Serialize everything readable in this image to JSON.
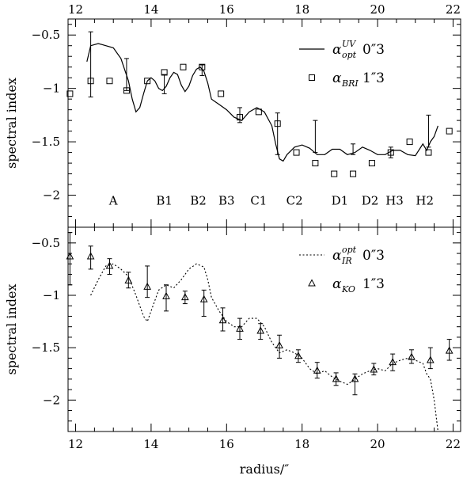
{
  "chart_data": [
    {
      "type": "line",
      "panel": "top",
      "ylabel": "spectral index",
      "xlabel": "",
      "xlim": [
        11.8,
        22.2
      ],
      "ylim": [
        -2.3,
        -0.35
      ],
      "xticks": [
        "12",
        "14",
        "16",
        "18",
        "20",
        "22"
      ],
      "yticks": [
        "−0.5",
        "−1",
        "−1.5",
        "−2"
      ],
      "ytick_values": [
        -0.5,
        -1,
        -1.5,
        -2
      ],
      "legend": [
        {
          "symbol": "line",
          "greek": "α",
          "sup": "UV",
          "sub": "opt",
          "size": "0″3"
        },
        {
          "symbol": "square",
          "greek": "α",
          "sup": "",
          "sub": "BRI",
          "size": "1″3"
        }
      ],
      "region_labels": [
        {
          "text": "A",
          "x": 13.0
        },
        {
          "text": "B1",
          "x": 14.35
        },
        {
          "text": "B2",
          "x": 15.25
        },
        {
          "text": "B3",
          "x": 16.0
        },
        {
          "text": "C1",
          "x": 16.85
        },
        {
          "text": "C2",
          "x": 17.8
        },
        {
          "text": "D1",
          "x": 19.0
        },
        {
          "text": "D2",
          "x": 19.8
        },
        {
          "text": "H3",
          "x": 20.45
        },
        {
          "text": "H2",
          "x": 21.25
        }
      ],
      "region_label_y": -2.05,
      "series": [
        {
          "style": "solid",
          "x": [
            12.3,
            12.4,
            12.6,
            12.8,
            13.0,
            13.2,
            13.4,
            13.5,
            13.6,
            13.7,
            13.8,
            13.9,
            14.0,
            14.1,
            14.2,
            14.3,
            14.4,
            14.5,
            14.6,
            14.7,
            14.8,
            14.9,
            15.0,
            15.1,
            15.2,
            15.3,
            15.4,
            15.5,
            15.6,
            15.8,
            16.0,
            16.2,
            16.4,
            16.6,
            16.8,
            17.0,
            17.2,
            17.3,
            17.4,
            17.5,
            17.6,
            17.8,
            18.0,
            18.2,
            18.4,
            18.6,
            18.8,
            19.0,
            19.2,
            19.4,
            19.6,
            19.8,
            20.0,
            20.2,
            20.4,
            20.6,
            20.8,
            21.0,
            21.2,
            21.3,
            21.4,
            21.5,
            21.6
          ],
          "y": [
            -0.75,
            -0.6,
            -0.58,
            -0.6,
            -0.62,
            -0.72,
            -0.93,
            -1.1,
            -1.22,
            -1.18,
            -1.05,
            -0.93,
            -0.9,
            -0.93,
            -1.0,
            -1.02,
            -0.98,
            -0.9,
            -0.85,
            -0.87,
            -0.97,
            -1.03,
            -0.98,
            -0.88,
            -0.82,
            -0.8,
            -0.84,
            -0.95,
            -1.1,
            -1.15,
            -1.2,
            -1.27,
            -1.3,
            -1.22,
            -1.18,
            -1.22,
            -1.35,
            -1.52,
            -1.66,
            -1.68,
            -1.62,
            -1.55,
            -1.53,
            -1.56,
            -1.62,
            -1.62,
            -1.57,
            -1.57,
            -1.62,
            -1.6,
            -1.55,
            -1.58,
            -1.62,
            -1.62,
            -1.58,
            -1.58,
            -1.62,
            -1.63,
            -1.52,
            -1.58,
            -1.5,
            -1.45,
            -1.35
          ]
        },
        {
          "style": "square",
          "x": [
            11.85,
            12.4,
            12.9,
            13.35,
            13.9,
            14.35,
            14.85,
            15.35,
            15.85,
            16.35,
            16.85,
            17.35,
            17.85,
            18.35,
            18.85,
            19.35,
            19.85,
            20.35,
            20.85,
            21.35,
            21.9
          ],
          "y": [
            -1.05,
            -0.93,
            -0.93,
            -1.02,
            -0.93,
            -0.85,
            -0.8,
            -0.8,
            -1.05,
            -1.27,
            -1.22,
            -1.33,
            -1.6,
            -1.7,
            -1.8,
            -1.8,
            -1.7,
            -1.6,
            -1.5,
            -1.6,
            -1.4
          ],
          "errors": [
            {
              "x": 12.4,
              "lo": -1.08,
              "hi": -0.47
            },
            {
              "x": 13.35,
              "lo": -1.02,
              "hi": -0.72
            },
            {
              "x": 14.35,
              "lo": -1.05,
              "hi": -0.87
            },
            {
              "x": 15.35,
              "lo": -0.88,
              "hi": -0.78
            },
            {
              "x": 16.35,
              "lo": -1.32,
              "hi": -1.18
            },
            {
              "x": 17.35,
              "lo": -1.62,
              "hi": -1.23
            },
            {
              "x": 18.35,
              "lo": -1.6,
              "hi": -1.3
            },
            {
              "x": 19.35,
              "lo": -1.62,
              "hi": -1.52
            },
            {
              "x": 20.35,
              "lo": -1.65,
              "hi": -1.55
            },
            {
              "x": 21.35,
              "lo": -1.55,
              "hi": -1.25
            }
          ]
        }
      ]
    },
    {
      "type": "line",
      "panel": "bottom",
      "ylabel": "spectral index",
      "xlabel": "radius/″",
      "xlim": [
        11.8,
        22.2
      ],
      "ylim": [
        -2.3,
        -0.35
      ],
      "xticks": [
        "12",
        "14",
        "16",
        "18",
        "20",
        "22"
      ],
      "yticks": [
        "−0.5",
        "−1",
        "−1.5",
        "−2"
      ],
      "ytick_values": [
        -0.5,
        -1,
        -1.5,
        -2
      ],
      "legend": [
        {
          "symbol": "dotted",
          "greek": "α",
          "sup": "opt",
          "sub": "IR",
          "size": "0″3"
        },
        {
          "symbol": "triangle",
          "greek": "α",
          "sup": "",
          "sub": "KO",
          "size": "1″3"
        }
      ],
      "series": [
        {
          "style": "dotted",
          "x": [
            12.4,
            12.6,
            12.8,
            13.0,
            13.2,
            13.4,
            13.6,
            13.8,
            13.9,
            14.0,
            14.2,
            14.4,
            14.6,
            14.8,
            15.0,
            15.2,
            15.4,
            15.5,
            15.6,
            15.8,
            16.0,
            16.2,
            16.4,
            16.6,
            16.8,
            17.0,
            17.2,
            17.4,
            17.6,
            17.8,
            18.0,
            18.2,
            18.4,
            18.6,
            18.8,
            19.0,
            19.2,
            19.4,
            19.6,
            19.8,
            20.0,
            20.2,
            20.4,
            20.6,
            20.8,
            21.0,
            21.2,
            21.3,
            21.4,
            21.5,
            21.6
          ],
          "y": [
            -1.0,
            -0.85,
            -0.72,
            -0.7,
            -0.75,
            -0.82,
            -1.0,
            -1.2,
            -1.25,
            -1.15,
            -0.95,
            -0.9,
            -0.93,
            -0.85,
            -0.75,
            -0.7,
            -0.73,
            -0.85,
            -1.02,
            -1.15,
            -1.25,
            -1.3,
            -1.3,
            -1.22,
            -1.22,
            -1.3,
            -1.45,
            -1.55,
            -1.52,
            -1.55,
            -1.6,
            -1.7,
            -1.75,
            -1.72,
            -1.78,
            -1.82,
            -1.85,
            -1.8,
            -1.75,
            -1.72,
            -1.7,
            -1.72,
            -1.65,
            -1.62,
            -1.6,
            -1.62,
            -1.65,
            -1.75,
            -1.8,
            -2.0,
            -2.3
          ]
        },
        {
          "style": "triangle",
          "x": [
            11.85,
            12.4,
            12.9,
            13.4,
            13.9,
            14.4,
            14.9,
            15.4,
            15.9,
            16.35,
            16.9,
            17.4,
            17.9,
            18.4,
            18.9,
            19.4,
            19.9,
            20.4,
            20.9,
            21.4,
            21.9
          ],
          "y": [
            -0.63,
            -0.63,
            -0.72,
            -0.86,
            -0.92,
            -1.01,
            -1.02,
            -1.04,
            -1.24,
            -1.32,
            -1.34,
            -1.48,
            -1.58,
            -1.72,
            -1.8,
            -1.8,
            -1.71,
            -1.64,
            -1.59,
            -1.62,
            -1.53
          ],
          "errors": [
            {
              "x": 11.85,
              "lo": -0.9,
              "hi": -0.4
            },
            {
              "x": 12.4,
              "lo": -0.75,
              "hi": -0.53
            },
            {
              "x": 12.9,
              "lo": -0.8,
              "hi": -0.65
            },
            {
              "x": 13.4,
              "lo": -0.93,
              "hi": -0.78
            },
            {
              "x": 13.9,
              "lo": -1.02,
              "hi": -0.72
            },
            {
              "x": 14.4,
              "lo": -1.15,
              "hi": -0.9
            },
            {
              "x": 14.9,
              "lo": -1.08,
              "hi": -0.96
            },
            {
              "x": 15.4,
              "lo": -1.2,
              "hi": -0.95
            },
            {
              "x": 15.9,
              "lo": -1.34,
              "hi": -1.12
            },
            {
              "x": 16.35,
              "lo": -1.42,
              "hi": -1.22
            },
            {
              "x": 16.9,
              "lo": -1.42,
              "hi": -1.27
            },
            {
              "x": 17.4,
              "lo": -1.6,
              "hi": -1.38
            },
            {
              "x": 17.9,
              "lo": -1.64,
              "hi": -1.52
            },
            {
              "x": 18.4,
              "lo": -1.79,
              "hi": -1.64
            },
            {
              "x": 18.9,
              "lo": -1.86,
              "hi": -1.74
            },
            {
              "x": 19.4,
              "lo": -1.95,
              "hi": -1.75
            },
            {
              "x": 19.9,
              "lo": -1.76,
              "hi": -1.65
            },
            {
              "x": 20.4,
              "lo": -1.72,
              "hi": -1.56
            },
            {
              "x": 20.9,
              "lo": -1.65,
              "hi": -1.52
            },
            {
              "x": 21.4,
              "lo": -1.7,
              "hi": -1.5
            },
            {
              "x": 21.9,
              "lo": -1.62,
              "hi": -1.42
            }
          ]
        }
      ]
    }
  ]
}
